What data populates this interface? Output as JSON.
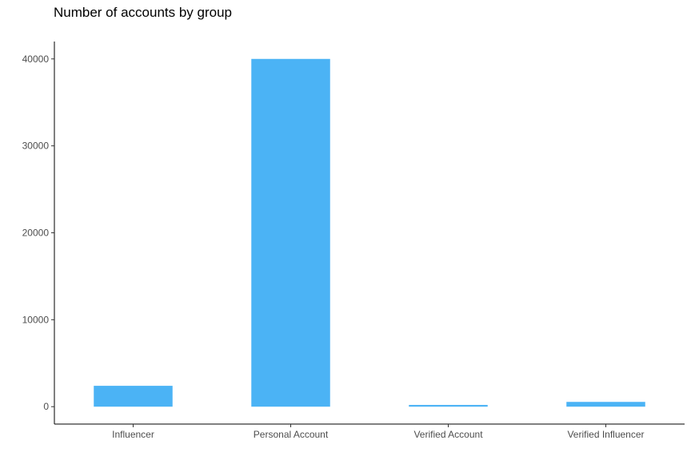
{
  "chart_data": {
    "type": "bar",
    "title": "Number of accounts by group",
    "xlabel": "",
    "ylabel": "",
    "categories": [
      "Influencer",
      "Personal Account",
      "Verified Account",
      "Verified Influencer"
    ],
    "values": [
      2400,
      40000,
      200,
      550
    ],
    "y_ticks": [
      0,
      10000,
      20000,
      30000,
      40000
    ],
    "y_tick_labels": [
      "0",
      "10000",
      "20000",
      "30000",
      "40000"
    ],
    "ylim": [
      -2000,
      42000
    ],
    "bar_color": "#4bb3f5",
    "grid": false,
    "legend": "none"
  }
}
